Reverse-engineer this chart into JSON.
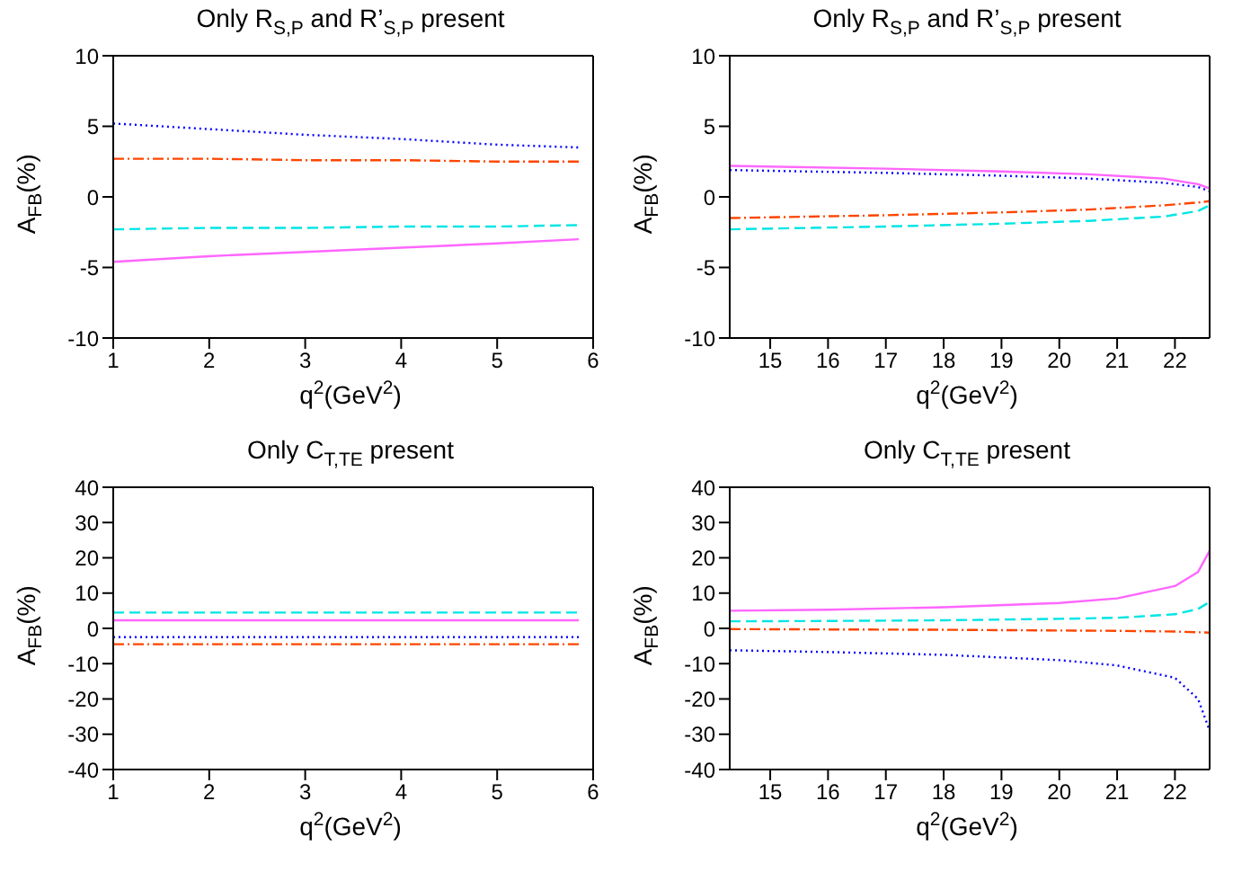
{
  "chart_data": [
    {
      "type": "line",
      "title": "Only R$_{S,P}$ and R’$_{S,P}$ present",
      "xlabel": "q$^{2}$(GeV$^{2}$)",
      "ylabel": "A$_{FB}$(%)",
      "xlim": [
        1,
        6
      ],
      "xticks": [
        1,
        2,
        3,
        4,
        5,
        6
      ],
      "ylim": [
        -10,
        10
      ],
      "yticks": [
        -10,
        -5,
        0,
        5,
        10
      ],
      "marker": "none",
      "series": [
        {
          "color": "#0000ff",
          "line_style": "dotted",
          "x": [
            1,
            2,
            3,
            4,
            5,
            5.85
          ],
          "values": [
            5.2,
            4.8,
            4.4,
            4.1,
            3.7,
            3.5
          ]
        },
        {
          "color": "#ff4500",
          "line_style": "dashdot",
          "x": [
            1,
            2,
            3,
            4,
            5,
            5.85
          ],
          "values": [
            2.7,
            2.7,
            2.6,
            2.6,
            2.5,
            2.5
          ]
        },
        {
          "color": "#00e5e5",
          "line_style": "dashed",
          "x": [
            1,
            2,
            3,
            4,
            5,
            5.85
          ],
          "values": [
            -2.3,
            -2.2,
            -2.2,
            -2.1,
            -2.1,
            -2.0
          ]
        },
        {
          "color": "#ff66ff",
          "line_style": "solid",
          "x": [
            1,
            2,
            3,
            4,
            5,
            5.85
          ],
          "values": [
            -4.6,
            -4.2,
            -3.9,
            -3.6,
            -3.3,
            -3.0
          ]
        }
      ]
    },
    {
      "type": "line",
      "title": "Only R$_{S,P}$ and R’$_{S,P}$ present",
      "xlabel": "q$^{2}$(GeV$^{2}$)",
      "ylabel": "A$_{FB}$(%)",
      "xlim": [
        14.3,
        22.6
      ],
      "xticks": [
        15,
        16,
        17,
        18,
        19,
        20,
        21,
        22
      ],
      "ylim": [
        -10,
        10
      ],
      "yticks": [
        -10,
        -5,
        0,
        5,
        10
      ],
      "marker": "none",
      "series": [
        {
          "color": "#ff66ff",
          "line_style": "solid",
          "x": [
            14.3,
            17,
            19,
            20.5,
            21.8,
            22.4,
            22.6
          ],
          "values": [
            2.2,
            2.0,
            1.8,
            1.6,
            1.3,
            0.9,
            0.6
          ]
        },
        {
          "color": "#0000ff",
          "line_style": "dotted",
          "x": [
            14.3,
            17,
            19,
            20.5,
            21.8,
            22.4,
            22.6
          ],
          "values": [
            1.9,
            1.7,
            1.5,
            1.3,
            1.0,
            0.7,
            0.4
          ]
        },
        {
          "color": "#ff4500",
          "line_style": "dashdot",
          "x": [
            14.3,
            17,
            19,
            20.5,
            21.8,
            22.4,
            22.6
          ],
          "values": [
            -1.5,
            -1.3,
            -1.1,
            -0.9,
            -0.6,
            -0.4,
            -0.3
          ]
        },
        {
          "color": "#00e5e5",
          "line_style": "dashed",
          "x": [
            14.3,
            17,
            19,
            20.5,
            21.8,
            22.4,
            22.6
          ],
          "values": [
            -2.3,
            -2.1,
            -1.9,
            -1.7,
            -1.4,
            -1.0,
            -0.6
          ]
        }
      ]
    },
    {
      "type": "line",
      "title": "Only C$_{T,TE}$ present",
      "xlabel": "q$^{2}$(GeV$^{2}$)",
      "ylabel": "A$_{FB}$(%)",
      "xlim": [
        1,
        6
      ],
      "xticks": [
        1,
        2,
        3,
        4,
        5,
        6
      ],
      "ylim": [
        -40,
        40
      ],
      "yticks": [
        -40,
        -30,
        -20,
        -10,
        0,
        10,
        20,
        30,
        40
      ],
      "marker": "none",
      "series": [
        {
          "color": "#00e5e5",
          "line_style": "dashed",
          "x": [
            1,
            5.85
          ],
          "values": [
            4.5,
            4.5
          ]
        },
        {
          "color": "#ff66ff",
          "line_style": "solid",
          "x": [
            1,
            5.85
          ],
          "values": [
            2.3,
            2.3
          ]
        },
        {
          "color": "#0000ff",
          "line_style": "dotted",
          "x": [
            1,
            5.85
          ],
          "values": [
            -2.5,
            -2.5
          ]
        },
        {
          "color": "#ff4500",
          "line_style": "dashdot",
          "x": [
            1,
            5.85
          ],
          "values": [
            -4.5,
            -4.5
          ]
        }
      ]
    },
    {
      "type": "line",
      "title": "Only C$_{T,TE}$ present",
      "xlabel": "q$^{2}$(GeV$^{2}$)",
      "ylabel": "A$_{FB}$(%)",
      "xlim": [
        14.3,
        22.6
      ],
      "xticks": [
        15,
        16,
        17,
        18,
        19,
        20,
        21,
        22
      ],
      "ylim": [
        -40,
        40
      ],
      "yticks": [
        -40,
        -30,
        -20,
        -10,
        0,
        10,
        20,
        30,
        40
      ],
      "marker": "none",
      "series": [
        {
          "color": "#ff66ff",
          "line_style": "solid",
          "x": [
            14.3,
            16,
            18,
            20,
            21,
            22,
            22.4,
            22.6
          ],
          "values": [
            5,
            5.3,
            6,
            7.2,
            8.5,
            12,
            16,
            22
          ]
        },
        {
          "color": "#00e5e5",
          "line_style": "dashed",
          "x": [
            14.3,
            16,
            18,
            20,
            21,
            22,
            22.4,
            22.6
          ],
          "values": [
            2,
            2.1,
            2.3,
            2.7,
            3,
            4,
            5.5,
            7.5
          ]
        },
        {
          "color": "#ff4500",
          "line_style": "dashdot",
          "x": [
            14.3,
            16,
            18,
            20,
            21,
            22,
            22.4,
            22.6
          ],
          "values": [
            -0.2,
            -0.3,
            -0.4,
            -0.6,
            -0.7,
            -0.9,
            -1.1,
            -1.2
          ]
        },
        {
          "color": "#0000ff",
          "line_style": "dotted",
          "x": [
            14.3,
            16,
            18,
            20,
            21,
            22,
            22.4,
            22.6
          ],
          "values": [
            -6.2,
            -6.7,
            -7.5,
            -9,
            -10.5,
            -14,
            -20,
            -29
          ]
        }
      ]
    }
  ]
}
